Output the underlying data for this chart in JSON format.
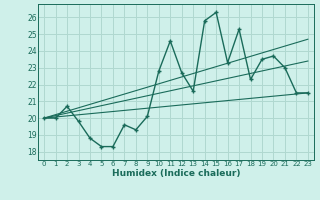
{
  "xlabel": "Humidex (Indice chaleur)",
  "background_color": "#cff0ea",
  "grid_color": "#b0d8d0",
  "line_color": "#1a6b5a",
  "xlim": [
    -0.5,
    23.5
  ],
  "ylim": [
    17.5,
    26.8
  ],
  "yticks": [
    18,
    19,
    20,
    21,
    22,
    23,
    24,
    25,
    26
  ],
  "xticks": [
    0,
    1,
    2,
    3,
    4,
    5,
    6,
    7,
    8,
    9,
    10,
    11,
    12,
    13,
    14,
    15,
    16,
    17,
    18,
    19,
    20,
    21,
    22,
    23
  ],
  "main_x": [
    0,
    1,
    2,
    3,
    4,
    5,
    6,
    7,
    8,
    9,
    10,
    11,
    12,
    13,
    14,
    15,
    16,
    17,
    18,
    19,
    20,
    21,
    22,
    23
  ],
  "main_y": [
    20.0,
    20.0,
    20.7,
    19.8,
    18.8,
    18.3,
    18.3,
    19.6,
    19.3,
    20.1,
    22.8,
    24.6,
    22.7,
    21.6,
    25.8,
    26.3,
    23.3,
    25.3,
    22.3,
    23.5,
    23.7,
    23.0,
    21.5,
    21.5
  ],
  "line1_x": [
    0,
    23
  ],
  "line1_y": [
    20.0,
    21.5
  ],
  "line2_x": [
    0,
    23
  ],
  "line2_y": [
    20.0,
    23.4
  ],
  "line3_x": [
    0,
    23
  ],
  "line3_y": [
    20.0,
    24.7
  ]
}
